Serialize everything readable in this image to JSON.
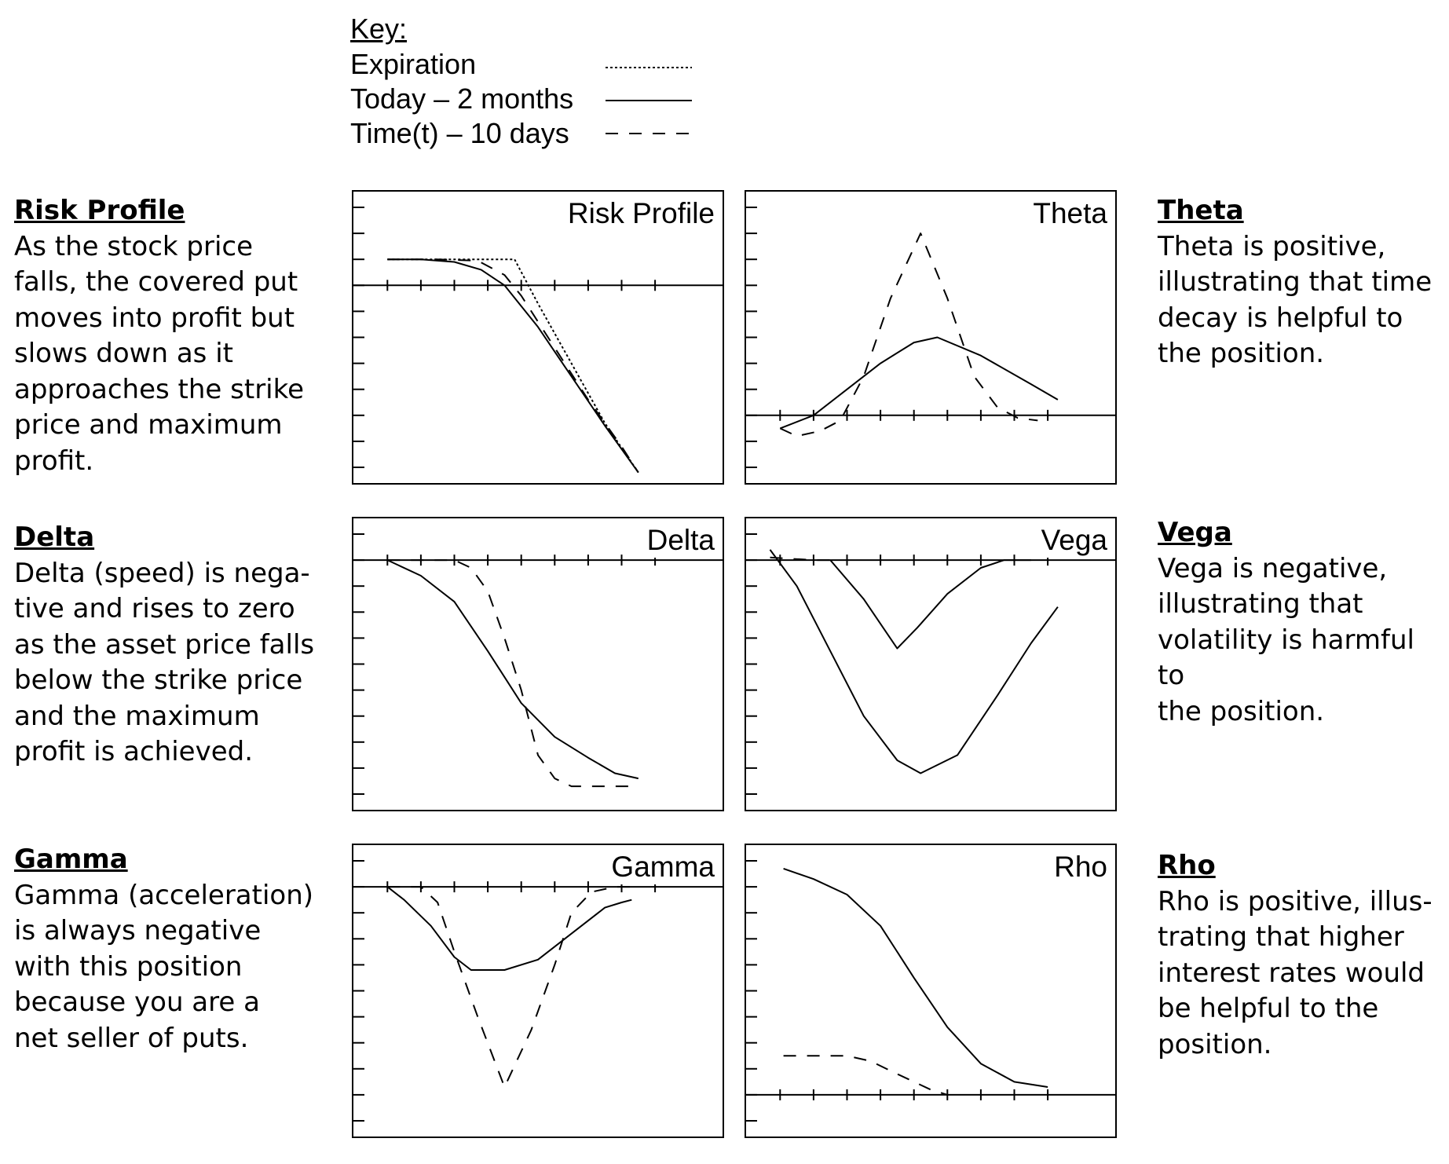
{
  "key": {
    "title": "Key:",
    "entries": [
      {
        "label": "Expiration",
        "style": "dotted"
      },
      {
        "label": "Today – 2 months",
        "style": "solid"
      },
      {
        "label": "Time(t) – 10 days",
        "style": "dashed"
      }
    ]
  },
  "descriptions": {
    "risk_profile": {
      "heading": "Risk Profile",
      "lines": [
        "As the stock price",
        "falls, the covered put",
        "moves into profit but",
        "slows down as it",
        "approaches the strike",
        "price and maximum",
        "profit."
      ]
    },
    "delta": {
      "heading": "Delta",
      "lines": [
        "Delta (speed) is nega-",
        "tive and rises to zero",
        "as the asset price falls",
        "below the strike price",
        "and the maximum",
        "profit is achieved."
      ]
    },
    "gamma": {
      "heading": "Gamma",
      "lines": [
        "Gamma (acceleration)",
        "is always negative",
        "with this position",
        "because you are a",
        "net seller of puts."
      ]
    },
    "theta": {
      "heading": "Theta",
      "lines": [
        "Theta is positive,",
        "illustrating that time",
        "decay is helpful to",
        "the position."
      ]
    },
    "vega": {
      "heading": "Vega",
      "lines": [
        "Vega is negative,",
        "illustrating that",
        "volatility is harmful to",
        "the position."
      ]
    },
    "rho": {
      "heading": "Rho",
      "lines": [
        "Rho is positive, illus-",
        "trating that higher",
        "interest rates would",
        "be helpful to the",
        "position."
      ]
    }
  },
  "colors": {
    "line": "#000000",
    "background": "#ffffff"
  },
  "chart_data": [
    {
      "type": "line",
      "title": "Risk Profile",
      "x_ticks": 9,
      "xlim": [
        0,
        10
      ],
      "ylim": [
        -7,
        3
      ],
      "series": [
        {
          "name": "Expiration",
          "style": "dotted",
          "points": [
            [
              0.5,
              1
            ],
            [
              1.5,
              1
            ],
            [
              2.5,
              1
            ],
            [
              3.5,
              1
            ],
            [
              4.3,
              1
            ],
            [
              5,
              -0.7
            ],
            [
              6,
              -3
            ],
            [
              7,
              -5.3
            ],
            [
              8,
              -7.2
            ]
          ]
        },
        {
          "name": "Today – 2 months",
          "style": "solid",
          "points": [
            [
              0.5,
              1
            ],
            [
              1.5,
              1
            ],
            [
              2.5,
              0.9
            ],
            [
              3.3,
              0.6
            ],
            [
              4,
              0
            ],
            [
              5,
              -1.6
            ],
            [
              6,
              -3.5
            ],
            [
              7,
              -5.4
            ],
            [
              8,
              -7.2
            ]
          ]
        },
        {
          "name": "Time(t) – 10 days",
          "style": "dashed",
          "points": [
            [
              0.5,
              1
            ],
            [
              2,
              1
            ],
            [
              3.2,
              0.95
            ],
            [
              4,
              0.4
            ],
            [
              4.5,
              -0.4
            ],
            [
              5.5,
              -2.4
            ],
            [
              6.5,
              -4.4
            ],
            [
              7.5,
              -6.2
            ],
            [
              8,
              -7.2
            ]
          ]
        }
      ]
    },
    {
      "type": "line",
      "title": "Theta",
      "x_ticks": 9,
      "xlim": [
        0,
        10
      ],
      "ylim": [
        -2,
        8
      ],
      "series": [
        {
          "name": "Today – 2 months",
          "style": "solid",
          "points": [
            [
              0.5,
              -0.5
            ],
            [
              1.5,
              0
            ],
            [
              2.5,
              1
            ],
            [
              3.5,
              2
            ],
            [
              4.5,
              2.8
            ],
            [
              5.2,
              3
            ],
            [
              6.5,
              2.3
            ],
            [
              8,
              1.2
            ],
            [
              8.8,
              0.6
            ]
          ]
        },
        {
          "name": "Time(t) – 10 days",
          "style": "dashed",
          "points": [
            [
              0.5,
              -0.5
            ],
            [
              1,
              -0.8
            ],
            [
              1.7,
              -0.6
            ],
            [
              2.3,
              -0.2
            ],
            [
              3,
              1.5
            ],
            [
              3.8,
              4.5
            ],
            [
              4.7,
              7
            ],
            [
              5.5,
              4.5
            ],
            [
              6.3,
              1.5
            ],
            [
              7,
              0.3
            ],
            [
              7.6,
              -0.1
            ],
            [
              8.2,
              -0.2
            ]
          ]
        }
      ]
    },
    {
      "type": "line",
      "title": "Delta",
      "x_ticks": 9,
      "xlim": [
        0,
        10
      ],
      "ylim": [
        -9,
        1
      ],
      "series": [
        {
          "name": "Today – 2 months",
          "style": "solid",
          "points": [
            [
              0.5,
              0
            ],
            [
              1.5,
              -0.6
            ],
            [
              2.5,
              -1.6
            ],
            [
              3.5,
              -3.5
            ],
            [
              4.5,
              -5.5
            ],
            [
              5.5,
              -6.8
            ],
            [
              6.5,
              -7.6
            ],
            [
              7.3,
              -8.2
            ],
            [
              8,
              -8.4
            ]
          ]
        },
        {
          "name": "Time(t) – 10 days",
          "style": "dashed",
          "points": [
            [
              0.5,
              0
            ],
            [
              2.5,
              0
            ],
            [
              3,
              -0.3
            ],
            [
              3.5,
              -1.2
            ],
            [
              4,
              -3
            ],
            [
              4.5,
              -5
            ],
            [
              5,
              -7.5
            ],
            [
              5.5,
              -8.4
            ],
            [
              6,
              -8.7
            ],
            [
              8,
              -8.7
            ]
          ]
        }
      ]
    },
    {
      "type": "line",
      "title": "Vega",
      "x_ticks": 9,
      "xlim": [
        0,
        10
      ],
      "ylim": [
        -9,
        1
      ],
      "series": [
        {
          "name": "Today – 2 months",
          "style": "solid",
          "points": [
            [
              0.2,
              0.4
            ],
            [
              1,
              -1
            ],
            [
              2,
              -3.5
            ],
            [
              3,
              -6
            ],
            [
              4,
              -7.7
            ],
            [
              4.7,
              -8.2
            ],
            [
              5.8,
              -7.5
            ],
            [
              7,
              -5.2
            ],
            [
              8,
              -3.2
            ],
            [
              8.8,
              -1.8
            ]
          ]
        },
        {
          "name": "Time(t) – 10 days",
          "style": "dashed",
          "points": [
            [
              0.2,
              0.1
            ],
            [
              1.5,
              0
            ],
            [
              2,
              0
            ]
          ]
        },
        {
          "name": "",
          "style": "solid",
          "points": [
            [
              2,
              0
            ],
            [
              3,
              -1.5
            ],
            [
              4,
              -3.4
            ],
            [
              4.6,
              -2.6
            ],
            [
              5.5,
              -1.3
            ],
            [
              6.5,
              -0.3
            ],
            [
              7.2,
              0
            ],
            [
              8,
              0
            ]
          ]
        }
      ]
    },
    {
      "type": "line",
      "title": "Gamma",
      "x_ticks": 9,
      "xlim": [
        0,
        10
      ],
      "ylim": [
        -9,
        1
      ],
      "series": [
        {
          "name": "Today – 2 months",
          "style": "solid",
          "points": [
            [
              0.5,
              0
            ],
            [
              1,
              -0.5
            ],
            [
              1.8,
              -1.5
            ],
            [
              2.5,
              -2.7
            ],
            [
              3,
              -3.2
            ],
            [
              4,
              -3.2
            ],
            [
              5,
              -2.8
            ],
            [
              6,
              -1.8
            ],
            [
              7,
              -0.8
            ],
            [
              7.5,
              -0.6
            ],
            [
              7.8,
              -0.5
            ]
          ]
        },
        {
          "name": "Time(t) – 10 days",
          "style": "dashed",
          "points": [
            [
              0.5,
              0
            ],
            [
              1.5,
              0
            ],
            [
              2,
              -0.6
            ],
            [
              2.5,
              -2.5
            ],
            [
              3.2,
              -5
            ],
            [
              4,
              -7.7
            ],
            [
              4.8,
              -5.5
            ],
            [
              5.5,
              -3
            ],
            [
              6,
              -1
            ],
            [
              6.6,
              -0.2
            ],
            [
              7.3,
              0
            ],
            [
              7.8,
              0
            ]
          ]
        }
      ]
    },
    {
      "type": "line",
      "title": "Rho",
      "x_ticks": 9,
      "xlim": [
        0,
        10
      ],
      "ylim": [
        -1,
        9
      ],
      "series": [
        {
          "name": "Today – 2 months",
          "style": "solid",
          "points": [
            [
              0.6,
              8.7
            ],
            [
              1.5,
              8.3
            ],
            [
              2.5,
              7.7
            ],
            [
              3.5,
              6.5
            ],
            [
              4.5,
              4.5
            ],
            [
              5.5,
              2.6
            ],
            [
              6.5,
              1.2
            ],
            [
              7.5,
              0.5
            ],
            [
              8.5,
              0.3
            ]
          ]
        },
        {
          "name": "Time(t) – 10 days",
          "style": "dashed",
          "points": [
            [
              0.6,
              1.5
            ],
            [
              2.5,
              1.5
            ],
            [
              3.2,
              1.3
            ],
            [
              4,
              0.8
            ],
            [
              5,
              0.2
            ],
            [
              5.5,
              0
            ]
          ]
        }
      ]
    }
  ]
}
